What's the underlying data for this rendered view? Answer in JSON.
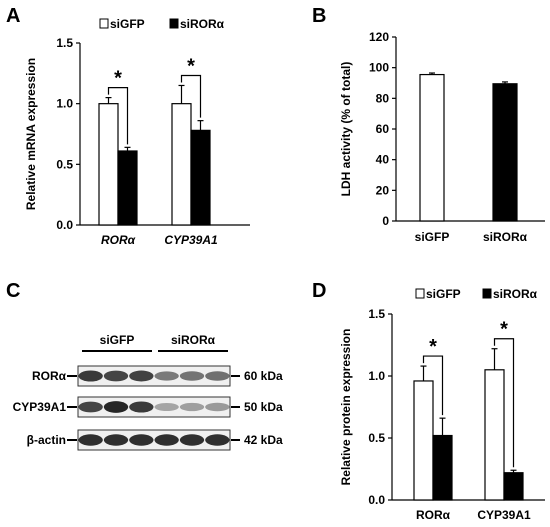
{
  "colors": {
    "bar_fill_open": "#ffffff",
    "bar_fill_solid": "#000000",
    "axis": "#000000",
    "blot_band": "#1a1a1a",
    "blot_bg": "#f0f0f0"
  },
  "panels": {
    "A": {
      "letter": "A"
    },
    "B": {
      "letter": "B"
    },
    "C": {
      "letter": "C"
    },
    "D": {
      "letter": "D"
    }
  },
  "chart_data": [
    {
      "panel": "A",
      "type": "bar",
      "ylabel": "Relative mRNA expression",
      "ylim": [
        0,
        1.5
      ],
      "yticks": [
        "0.0",
        "0.5",
        "1.0",
        "1.5"
      ],
      "categories": [
        "RORα",
        "CYP39A1"
      ],
      "category_style": "italic",
      "series": [
        {
          "name": "siGFP",
          "values": [
            1.0,
            1.0
          ],
          "errors": [
            0.05,
            0.15
          ],
          "fill": "open"
        },
        {
          "name": "siRORα",
          "values": [
            0.61,
            0.78
          ],
          "errors": [
            0.03,
            0.08
          ],
          "fill": "solid"
        }
      ],
      "significance": [
        "*",
        "*"
      ],
      "legend_position": "top"
    },
    {
      "panel": "B",
      "type": "bar",
      "ylabel": "LDH activity (% of total)",
      "ylim": [
        0,
        120
      ],
      "yticks": [
        "0",
        "20",
        "40",
        "60",
        "80",
        "100",
        "120"
      ],
      "categories": [
        "siGFP",
        "siRORα"
      ],
      "values": [
        95.5,
        89.5
      ],
      "errors": [
        1.0,
        1.2
      ],
      "fills": [
        "open",
        "solid"
      ]
    },
    {
      "panel": "D",
      "type": "bar",
      "ylabel": "Relative protein expression",
      "ylim": [
        0,
        1.5
      ],
      "yticks": [
        "0.0",
        "0.5",
        "1.0",
        "1.5"
      ],
      "categories": [
        "RORα",
        "CYP39A1"
      ],
      "category_style": "normal",
      "series": [
        {
          "name": "siGFP",
          "values": [
            0.96,
            1.05
          ],
          "errors": [
            0.12,
            0.17
          ],
          "fill": "open"
        },
        {
          "name": "siRORα",
          "values": [
            0.52,
            0.22
          ],
          "errors": [
            0.14,
            0.02
          ],
          "fill": "solid"
        }
      ],
      "significance": [
        "*",
        "*"
      ],
      "legend_position": "top"
    }
  ],
  "western_blot": {
    "panel": "C",
    "groups": [
      "siGFP",
      "siRORα"
    ],
    "rows": [
      {
        "label": "RORα",
        "size": "60 kDa",
        "intensity": [
          0.85,
          0.8,
          0.82,
          0.55,
          0.58,
          0.6
        ]
      },
      {
        "label": "CYP39A1",
        "size": "50 kDa",
        "intensity": [
          0.8,
          0.95,
          0.85,
          0.35,
          0.38,
          0.4
        ]
      },
      {
        "label": "β-actin",
        "size": "42 kDa",
        "intensity": [
          0.9,
          0.9,
          0.9,
          0.9,
          0.9,
          0.9
        ]
      }
    ]
  }
}
